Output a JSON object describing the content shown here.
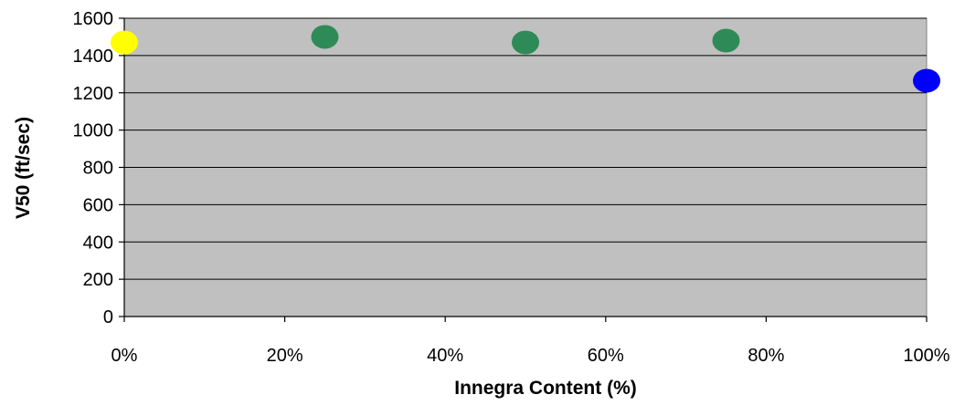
{
  "chart_data": {
    "type": "scatter",
    "title": "",
    "xlabel": "Innegra Content (%)",
    "ylabel": "V50 (ft/sec)",
    "xlim": [
      0,
      100
    ],
    "ylim": [
      0,
      1600
    ],
    "x_ticks": [
      0,
      20,
      40,
      60,
      80,
      100
    ],
    "x_tick_labels": [
      "0%",
      "20%",
      "40%",
      "60%",
      "80%",
      "100%"
    ],
    "y_ticks": [
      0,
      200,
      400,
      600,
      800,
      1000,
      1200,
      1400,
      1600
    ],
    "y_tick_labels": [
      "0",
      "200",
      "400",
      "600",
      "800",
      "1000",
      "1200",
      "1400",
      "1600"
    ],
    "grid": true,
    "plot_background": "#c0c0c0",
    "points": [
      {
        "x": 0,
        "y": 1470,
        "color": "#ffff00"
      },
      {
        "x": 25,
        "y": 1500,
        "color": "#2e8b57"
      },
      {
        "x": 50,
        "y": 1470,
        "color": "#2e8b57"
      },
      {
        "x": 75,
        "y": 1480,
        "color": "#2e8b57"
      },
      {
        "x": 100,
        "y": 1265,
        "color": "#0000ff"
      }
    ]
  }
}
